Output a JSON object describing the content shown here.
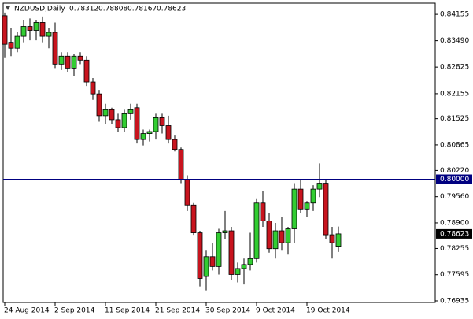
{
  "chart_data": {
    "type": "candlestick",
    "title": "NZDUSD,Daily",
    "categories": [
      "24 Aug 2014",
      null,
      null,
      null,
      null,
      null,
      null,
      null,
      "2 Sep 2014",
      null,
      null,
      null,
      null,
      null,
      null,
      null,
      "11 Sep 2014",
      null,
      null,
      null,
      null,
      null,
      null,
      null,
      "21 Sep 2014",
      null,
      null,
      null,
      null,
      null,
      null,
      null,
      "30 Sep 2014",
      null,
      null,
      null,
      null,
      null,
      null,
      null,
      "9 Oct 2014",
      null,
      null,
      null,
      null,
      null,
      null,
      null,
      "19 Oct 2014",
      null,
      null,
      null,
      null,
      null
    ],
    "open": [
      0.8412,
      0.8345,
      0.833,
      0.836,
      0.8385,
      0.8375,
      0.8395,
      0.836,
      0.837,
      0.829,
      0.831,
      0.828,
      0.831,
      0.83,
      0.8245,
      0.8215,
      0.816,
      0.8175,
      0.815,
      0.813,
      0.8165,
      0.818,
      0.81,
      0.8115,
      0.812,
      0.8155,
      0.8135,
      0.81,
      0.8075,
      0.8,
      0.7935,
      0.7865,
      0.7755,
      0.7805,
      0.778,
      0.7865,
      0.787,
      0.776,
      0.7775,
      0.7785,
      0.78,
      0.794,
      0.7895,
      0.7825,
      0.787,
      0.784,
      0.7875,
      0.7975,
      0.7925,
      0.794,
      0.7975,
      0.799,
      0.786,
      0.78312
    ],
    "high": [
      0.842,
      0.838,
      0.837,
      0.84,
      0.8405,
      0.84,
      0.841,
      0.838,
      0.8395,
      0.832,
      0.832,
      0.8315,
      0.832,
      0.831,
      0.8255,
      0.8225,
      0.819,
      0.818,
      0.8165,
      0.8175,
      0.819,
      0.819,
      0.8125,
      0.8125,
      0.8165,
      0.8165,
      0.816,
      0.811,
      0.808,
      0.801,
      0.794,
      0.787,
      0.782,
      0.784,
      0.7875,
      0.792,
      0.788,
      0.779,
      0.78,
      0.7865,
      0.795,
      0.797,
      0.7915,
      0.789,
      0.7905,
      0.788,
      0.799,
      0.8,
      0.7945,
      0.7985,
      0.804,
      0.8,
      0.788,
      0.78808
    ],
    "low": [
      0.8305,
      0.831,
      0.832,
      0.8345,
      0.835,
      0.835,
      0.8345,
      0.833,
      0.828,
      0.8275,
      0.827,
      0.826,
      0.829,
      0.8235,
      0.82,
      0.8145,
      0.814,
      0.814,
      0.812,
      0.812,
      0.815,
      0.809,
      0.8085,
      0.8095,
      0.81,
      0.8115,
      0.809,
      0.807,
      0.799,
      0.792,
      0.786,
      0.773,
      0.772,
      0.777,
      0.776,
      0.785,
      0.7745,
      0.774,
      0.7735,
      0.777,
      0.779,
      0.788,
      0.7815,
      0.78,
      0.782,
      0.781,
      0.784,
      0.7915,
      0.7905,
      0.792,
      0.7955,
      0.785,
      0.78,
      0.78167
    ],
    "close": [
      0.834,
      0.833,
      0.836,
      0.8385,
      0.8375,
      0.8395,
      0.836,
      0.837,
      0.829,
      0.831,
      0.828,
      0.831,
      0.83,
      0.8245,
      0.8215,
      0.816,
      0.8175,
      0.815,
      0.813,
      0.8165,
      0.8175,
      0.81,
      0.8115,
      0.812,
      0.8155,
      0.8135,
      0.81,
      0.8075,
      0.8,
      0.7935,
      0.7865,
      0.775,
      0.7805,
      0.778,
      0.7865,
      0.787,
      0.776,
      0.7775,
      0.7785,
      0.78,
      0.794,
      0.7895,
      0.7825,
      0.787,
      0.784,
      0.7875,
      0.7975,
      0.7925,
      0.794,
      0.7975,
      0.799,
      0.786,
      0.784,
      0.78623
    ],
    "up_color": "#32cd32",
    "down_color": "#c8141e",
    "ylim": [
      0.76895,
      0.84435
    ],
    "yticks": [
      0.84155,
      {
        "value": 0.8349,
        "label": "0.83490"
      },
      0.82825,
      0.82155,
      0.81525,
      0.80865,
      {
        "value": 0.8022,
        "label": "0.80220"
      },
      {
        "value": 0.7956,
        "label": "0.79560"
      },
      {
        "value": 0.789,
        "label": "0.78900"
      },
      0.78255,
      0.77595,
      0.76935
    ],
    "hline": {
      "value": 0.8,
      "label": "0.80000",
      "color": "#000080"
    }
  }
}
